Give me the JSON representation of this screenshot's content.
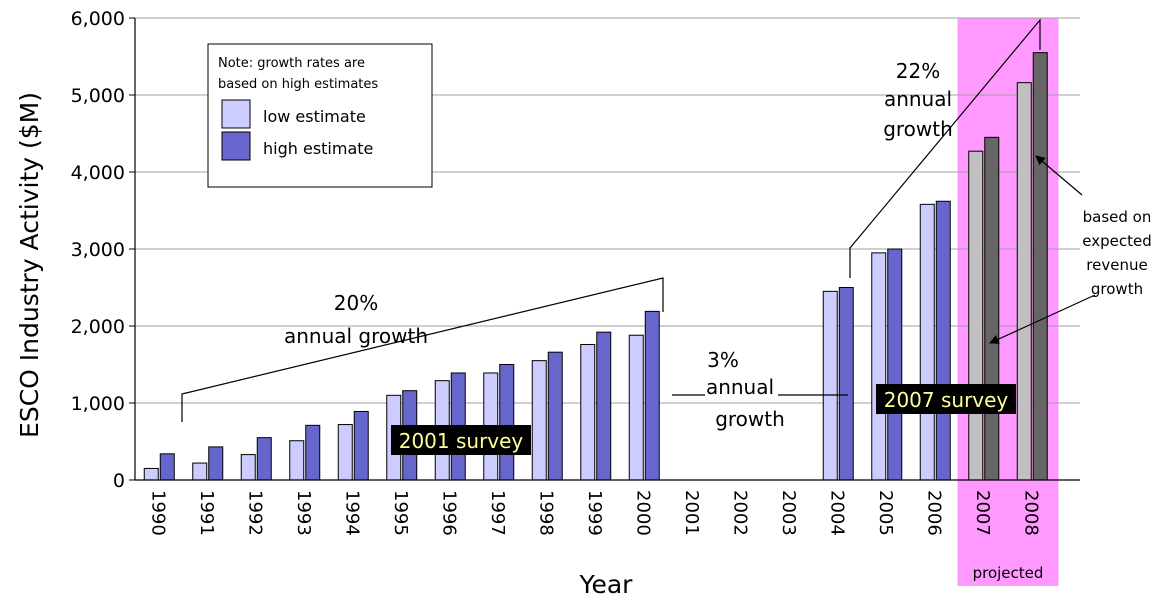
{
  "chart_data": {
    "type": "bar",
    "ylabel": "ESCO Industry Activity ($M)",
    "xlabel": "Year",
    "ylim": [
      0,
      6000
    ],
    "yticks": [
      "0",
      "1,000",
      "2,000",
      "3,000",
      "4,000",
      "5,000",
      "6,000"
    ],
    "grid": true,
    "categories": [
      "1990",
      "1991",
      "1992",
      "1993",
      "1994",
      "1995",
      "1996",
      "1997",
      "1998",
      "1999",
      "2000",
      "2001",
      "2002",
      "2003",
      "2004",
      "2005",
      "2006",
      "2007",
      "2008"
    ],
    "series": [
      {
        "name": "low estimate",
        "color": "#ccccff",
        "projected_color": "#c0c0c0",
        "values": [
          150,
          220,
          330,
          510,
          720,
          1100,
          1290,
          1390,
          1550,
          1760,
          1880,
          null,
          null,
          null,
          2450,
          2950,
          3580,
          4270,
          5160
        ]
      },
      {
        "name": "high estimate",
        "color": "#6666cc",
        "projected_color": "#666666",
        "values": [
          340,
          430,
          550,
          710,
          890,
          1160,
          1390,
          1500,
          1660,
          1920,
          2190,
          null,
          null,
          null,
          2500,
          3000,
          3620,
          4450,
          5550
        ]
      }
    ],
    "projected_categories": [
      "2007",
      "2008"
    ],
    "projected_label": "projected",
    "projected_color": "#ff99ff",
    "legend": {
      "note_line1": "Note: growth rates are",
      "note_line2": "based on high estimates",
      "placement": "top-left"
    },
    "annotations": {
      "growth_1990_2000": {
        "pct": "20%",
        "text": "annual growth"
      },
      "growth_2000_2004": {
        "pct": "3%",
        "line1": "annual",
        "line2": "growth"
      },
      "growth_2004_2008": {
        "pct": "22%",
        "line1": "annual",
        "line2": "growth"
      },
      "survey_2001": "2001 survey",
      "survey_2007": "2007 survey",
      "revenue_note": [
        "based on",
        "expected",
        "revenue",
        "growth"
      ]
    }
  }
}
